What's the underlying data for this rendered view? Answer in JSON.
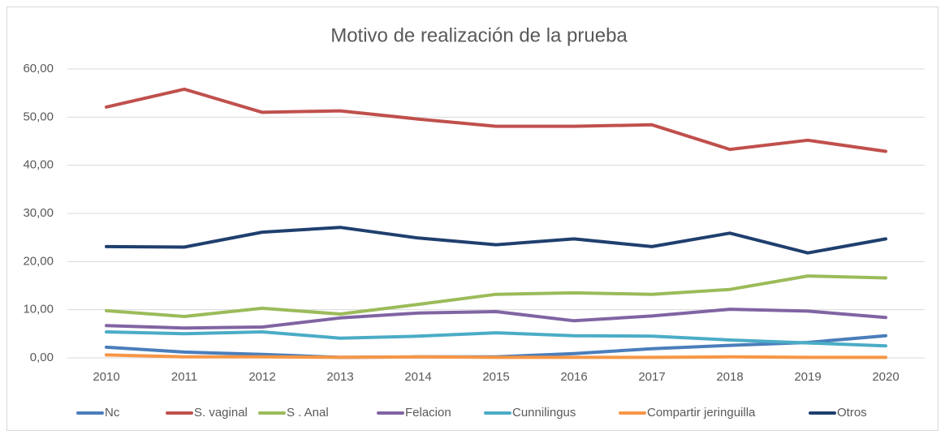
{
  "chart_data": {
    "type": "line",
    "title": "Motivo de realización de la prueba",
    "categories": [
      "2010",
      "2011",
      "2012",
      "2013",
      "2014",
      "2015",
      "2016",
      "2017",
      "2018",
      "2019",
      "2020"
    ],
    "series": [
      {
        "name": "Nc",
        "color": "#4a7ebb",
        "values": [
          2.2,
          1.2,
          0.7,
          0.1,
          0.2,
          0.2,
          0.9,
          1.9,
          2.6,
          3.2,
          4.6
        ]
      },
      {
        "name": "S. vaginal",
        "color": "#c0504d",
        "values": [
          52.1,
          55.8,
          51.0,
          51.3,
          49.6,
          48.1,
          48.1,
          48.4,
          43.3,
          45.2,
          42.9
        ]
      },
      {
        "name": "S . Anal",
        "color": "#9bbb59",
        "values": [
          9.8,
          8.6,
          10.3,
          9.1,
          11.1,
          13.2,
          13.5,
          13.2,
          14.2,
          17.0,
          16.6
        ]
      },
      {
        "name": "Felacion",
        "color": "#8064a2",
        "values": [
          6.7,
          6.2,
          6.4,
          8.3,
          9.3,
          9.6,
          7.7,
          8.7,
          10.1,
          9.7,
          8.4
        ]
      },
      {
        "name": "Cunnilingus",
        "color": "#4bacc6",
        "values": [
          5.4,
          5.0,
          5.4,
          4.1,
          4.5,
          5.2,
          4.6,
          4.5,
          3.7,
          3.1,
          2.5
        ]
      },
      {
        "name": "Compartir jeringuilla",
        "color": "#f79646",
        "values": [
          0.6,
          0.2,
          0.2,
          0.1,
          0.2,
          0.1,
          0.1,
          0.1,
          0.2,
          0.1,
          0.1
        ]
      },
      {
        "name": "Otros",
        "color": "#1f3f6e",
        "values": [
          23.1,
          23.0,
          26.1,
          27.1,
          24.9,
          23.5,
          24.7,
          23.1,
          25.9,
          21.8,
          24.7
        ]
      }
    ],
    "ylim": [
      0,
      60
    ],
    "yticks": [
      {
        "value": 0,
        "label": "0,00"
      },
      {
        "value": 10,
        "label": "10,00"
      },
      {
        "value": 20,
        "label": "20,00"
      },
      {
        "value": 30,
        "label": "30,00"
      },
      {
        "value": 40,
        "label": "40,00"
      },
      {
        "value": 50,
        "label": "50,00"
      },
      {
        "value": 60,
        "label": "60,00"
      }
    ],
    "grid": true,
    "legend": "bottom"
  }
}
